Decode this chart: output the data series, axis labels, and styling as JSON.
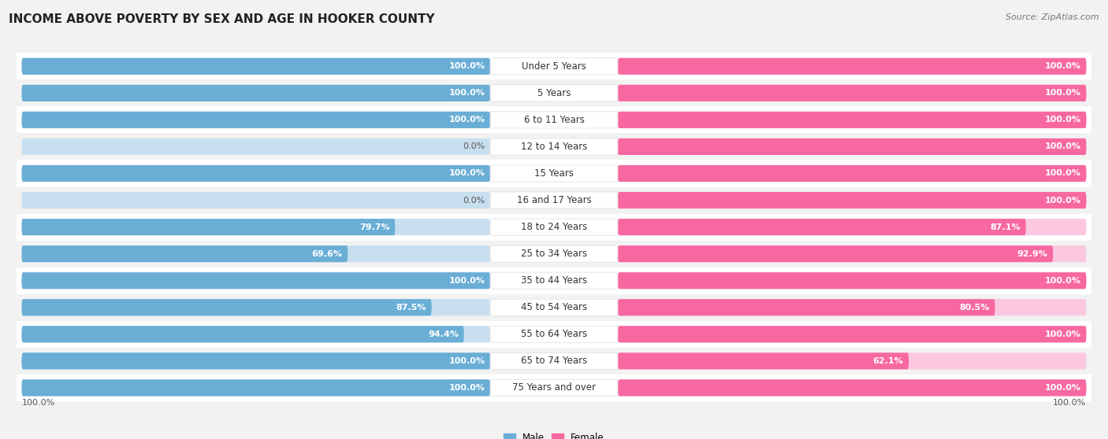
{
  "title": "INCOME ABOVE POVERTY BY SEX AND AGE IN HOOKER COUNTY",
  "source": "Source: ZipAtlas.com",
  "categories": [
    "Under 5 Years",
    "5 Years",
    "6 to 11 Years",
    "12 to 14 Years",
    "15 Years",
    "16 and 17 Years",
    "18 to 24 Years",
    "25 to 34 Years",
    "35 to 44 Years",
    "45 to 54 Years",
    "55 to 64 Years",
    "65 to 74 Years",
    "75 Years and over"
  ],
  "male_values": [
    100.0,
    100.0,
    100.0,
    0.0,
    100.0,
    0.0,
    79.7,
    69.6,
    100.0,
    87.5,
    94.4,
    100.0,
    100.0
  ],
  "female_values": [
    100.0,
    100.0,
    100.0,
    100.0,
    100.0,
    100.0,
    87.1,
    92.9,
    100.0,
    80.5,
    100.0,
    62.1,
    100.0
  ],
  "male_color": "#6aaed6",
  "male_bg_color": "#c8dff0",
  "female_color": "#f768a1",
  "female_bg_color": "#fbc8e0",
  "male_label": "Male",
  "female_label": "Female",
  "background_color": "#f2f2f2",
  "row_color_odd": "#ffffff",
  "row_color_even": "#f2f2f2",
  "title_fontsize": 11,
  "label_fontsize": 8.5,
  "value_fontsize": 8,
  "source_fontsize": 8
}
